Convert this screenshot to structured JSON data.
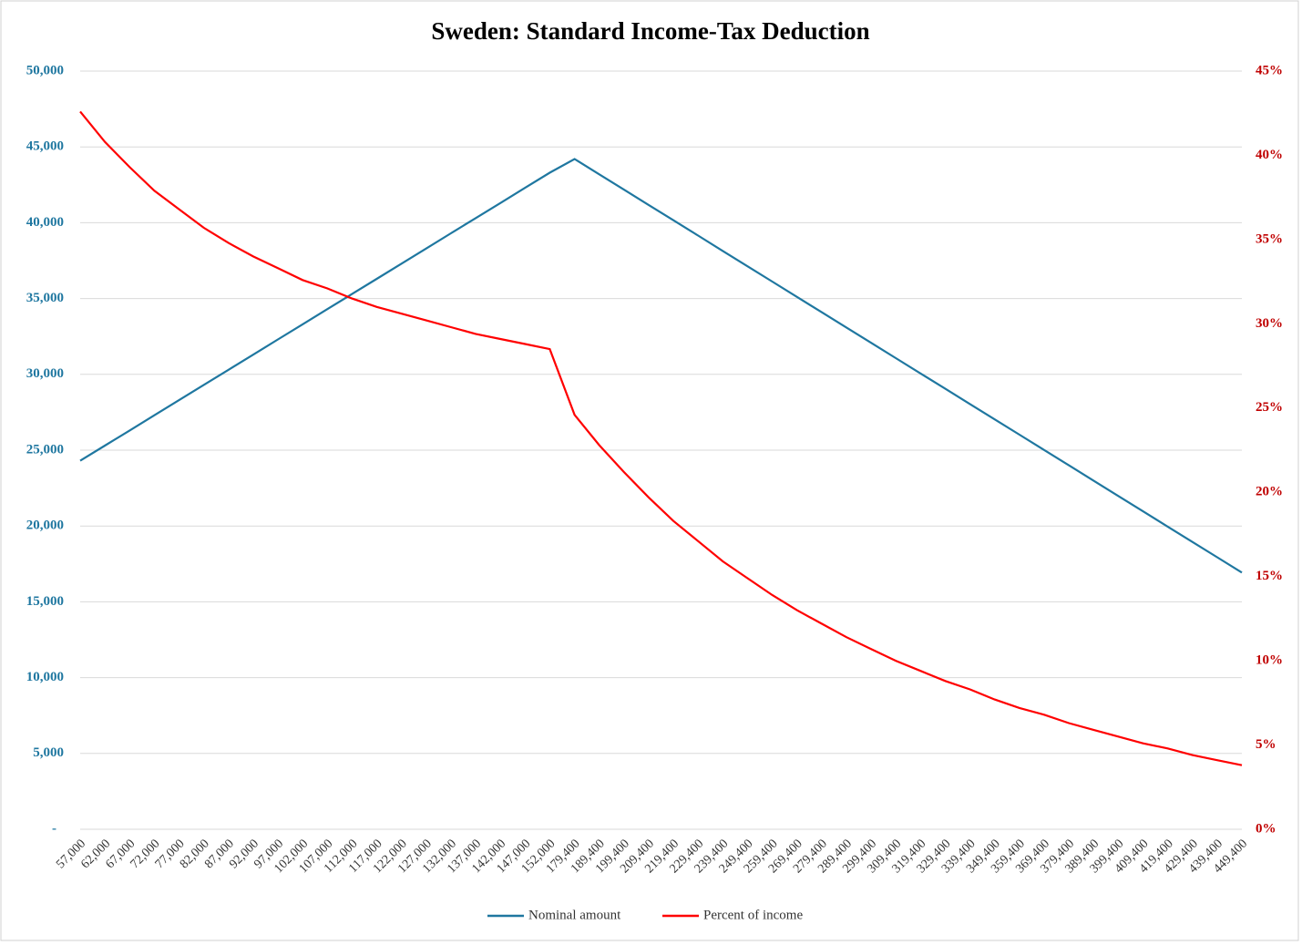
{
  "chart_data": {
    "type": "line",
    "title": "Sweden: Standard Income-Tax Deduction",
    "categories": [
      "57,000",
      "62,000",
      "67,000",
      "72,000",
      "77,000",
      "82,000",
      "87,000",
      "92,000",
      "97,000",
      "102,000",
      "107,000",
      "112,000",
      "117,000",
      "122,000",
      "127,000",
      "132,000",
      "137,000",
      "142,000",
      "147,000",
      "152,000",
      "179,400",
      "189,400",
      "199,400",
      "209,400",
      "219,400",
      "229,400",
      "239,400",
      "249,400",
      "259,400",
      "269,400",
      "279,400",
      "289,400",
      "299,400",
      "309,400",
      "319,400",
      "329,400",
      "339,400",
      "349,400",
      "359,400",
      "369,400",
      "379,400",
      "389,400",
      "399,400",
      "409,400",
      "419,400",
      "429,400",
      "439,400",
      "449,400"
    ],
    "series": [
      {
        "name": "Nominal amount",
        "color": "#1f77a0",
        "axis": "y",
        "values": [
          24300,
          25300,
          26300,
          27300,
          28300,
          29300,
          30300,
          31300,
          32300,
          33300,
          34300,
          35300,
          36300,
          37300,
          38300,
          39300,
          40300,
          41300,
          42300,
          43300,
          44200,
          43190,
          42180,
          41170,
          40160,
          39150,
          38140,
          37130,
          36120,
          35110,
          34100,
          33090,
          32080,
          31070,
          30060,
          29050,
          28040,
          27030,
          26020,
          25010,
          24000,
          22990,
          21980,
          20970,
          19960,
          18950,
          17940,
          16930
        ]
      },
      {
        "name": "Percent of income",
        "color": "#ff0000",
        "axis": "y2",
        "values": [
          42.6,
          40.8,
          39.3,
          37.9,
          36.8,
          35.7,
          34.8,
          34.0,
          33.3,
          32.6,
          32.1,
          31.5,
          31.0,
          30.6,
          30.2,
          29.8,
          29.4,
          29.1,
          28.8,
          28.5,
          24.6,
          22.8,
          21.2,
          19.7,
          18.3,
          17.1,
          15.9,
          14.9,
          13.9,
          13.0,
          12.2,
          11.4,
          10.7,
          10.0,
          9.4,
          8.8,
          8.3,
          7.7,
          7.2,
          6.8,
          6.3,
          5.9,
          5.5,
          5.1,
          4.8,
          4.4,
          4.1,
          3.8
        ]
      }
    ],
    "ylim": [
      0,
      50000
    ],
    "yticks": [
      {
        "value": 0,
        "label": "-"
      },
      {
        "value": 5000,
        "label": "5,000"
      },
      {
        "value": 10000,
        "label": "10,000"
      },
      {
        "value": 15000,
        "label": "15,000"
      },
      {
        "value": 20000,
        "label": "20,000"
      },
      {
        "value": 25000,
        "label": "25,000"
      },
      {
        "value": 30000,
        "label": "30,000"
      },
      {
        "value": 35000,
        "label": "35,000"
      },
      {
        "value": 40000,
        "label": "40,000"
      },
      {
        "value": 45000,
        "label": "45,000"
      },
      {
        "value": 50000,
        "label": "50,000"
      }
    ],
    "y2lim": [
      0,
      45
    ],
    "y2ticks": [
      {
        "value": 0,
        "label": "0%"
      },
      {
        "value": 5,
        "label": "5%"
      },
      {
        "value": 10,
        "label": "10%"
      },
      {
        "value": 15,
        "label": "15%"
      },
      {
        "value": 20,
        "label": "20%"
      },
      {
        "value": 25,
        "label": "25%"
      },
      {
        "value": 30,
        "label": "30%"
      },
      {
        "value": 35,
        "label": "35%"
      },
      {
        "value": 40,
        "label": "40%"
      },
      {
        "value": 45,
        "label": "45%"
      }
    ],
    "grid": true,
    "legend": "bottom"
  }
}
